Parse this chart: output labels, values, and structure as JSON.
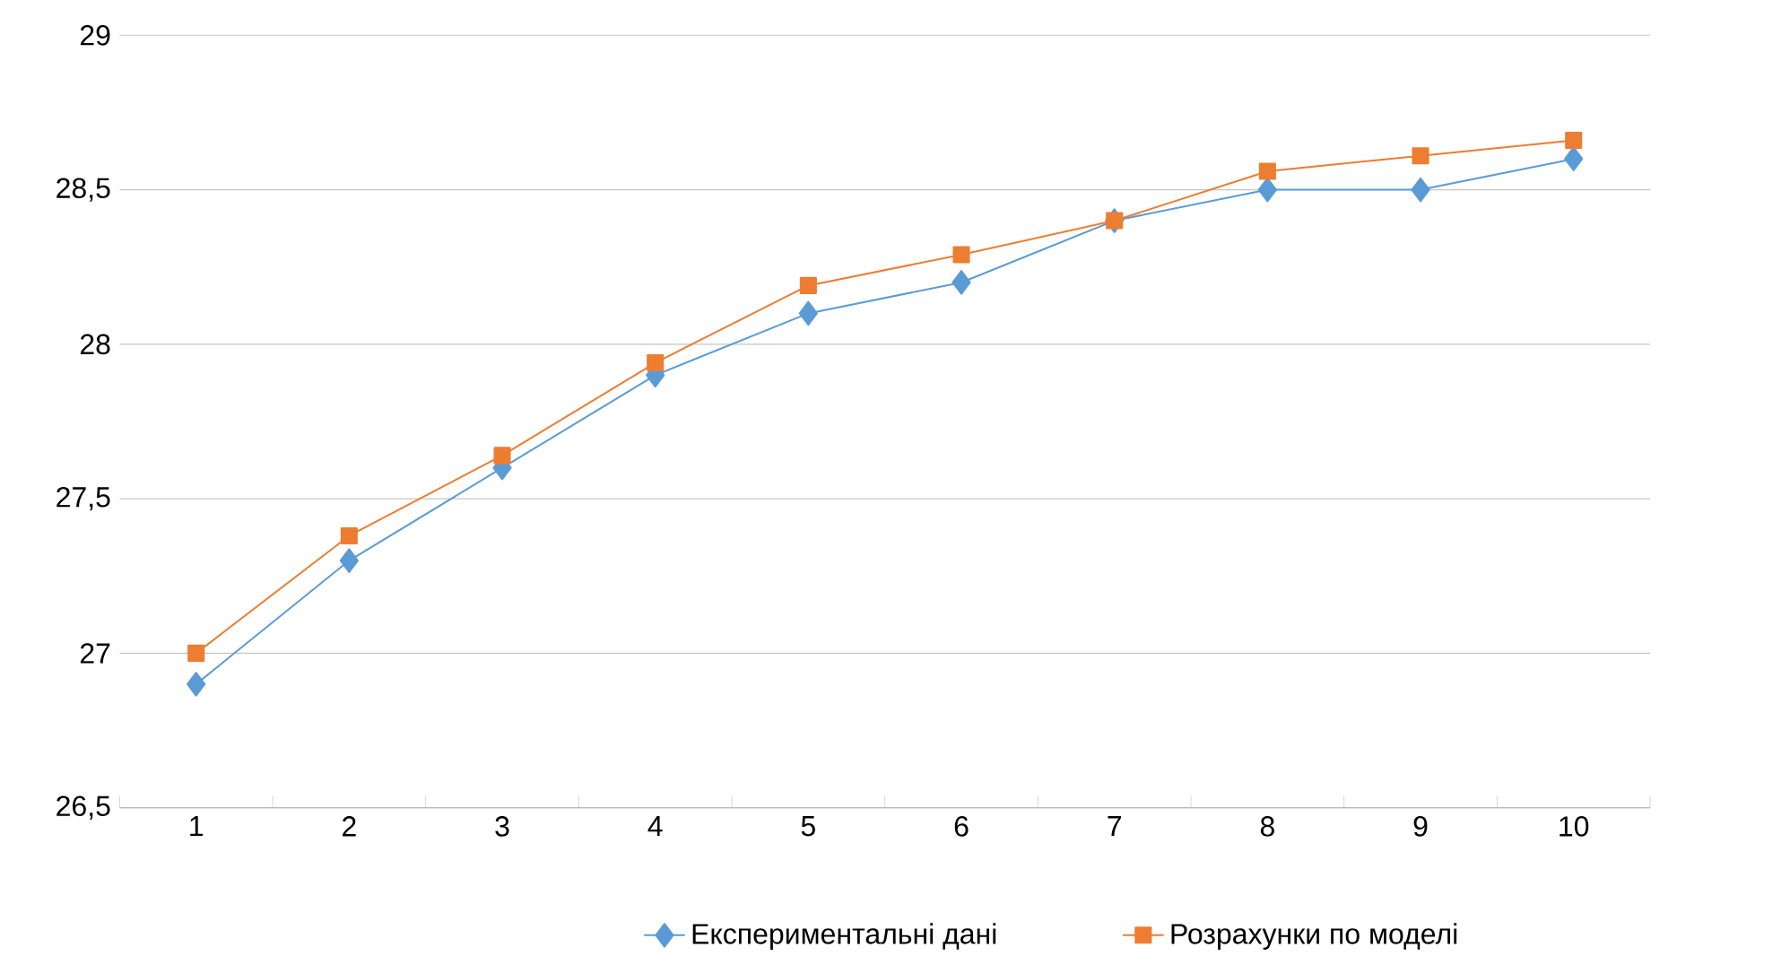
{
  "chart_data": {
    "type": "line",
    "categories": [
      "1",
      "2",
      "3",
      "4",
      "5",
      "6",
      "7",
      "8",
      "9",
      "10"
    ],
    "series": [
      {
        "name": "Експериментальні дані",
        "color": "#5b9bd5",
        "marker": "diamond",
        "values": [
          26.9,
          27.3,
          27.6,
          27.9,
          28.1,
          28.2,
          28.4,
          28.5,
          28.5,
          28.6
        ]
      },
      {
        "name": "Розрахунки по моделі",
        "color": "#ed7d31",
        "marker": "square",
        "values": [
          27.0,
          27.38,
          27.64,
          27.94,
          28.19,
          28.29,
          28.4,
          28.56,
          28.61,
          28.66
        ]
      }
    ],
    "ylim": [
      26.5,
      29
    ],
    "yticks": [
      {
        "value": 26.5,
        "label": "26,5"
      },
      {
        "value": 27,
        "label": "27"
      },
      {
        "value": 27.5,
        "label": "27,5"
      },
      {
        "value": 28,
        "label": "28"
      },
      {
        "value": 28.5,
        "label": "28,5"
      },
      {
        "value": 29,
        "label": "29"
      }
    ],
    "grid": "y",
    "legend": "bottom"
  }
}
